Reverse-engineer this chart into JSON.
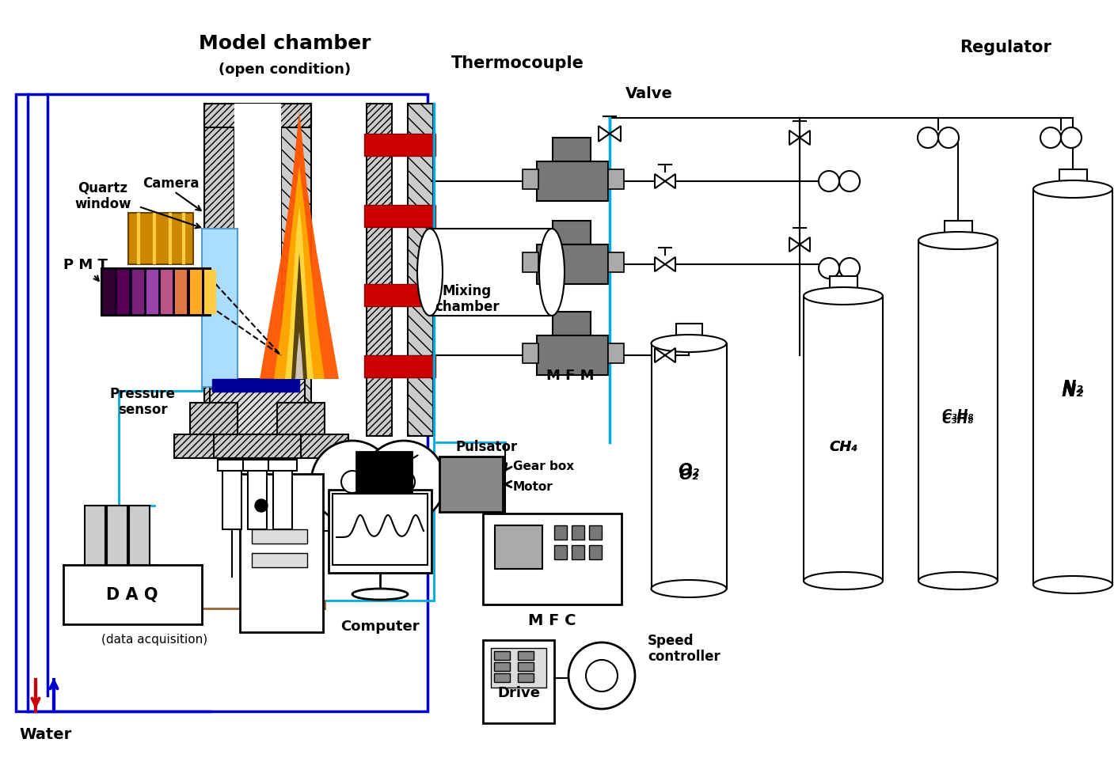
{
  "bg_color": "#ffffff",
  "blue_dark": "#0000CC",
  "cyan": "#00AADD",
  "brown": "#996633",
  "red_water": "#CC0000",
  "labels": {
    "model_chamber": "Model chamber",
    "open_condition": "(open condition)",
    "thermocouple": "Thermocouple",
    "regulator": "Regulator",
    "valve": "Valve",
    "quartz_window": "Quartz\nwindow",
    "camera": "Camera",
    "pmt": "P M T",
    "pressure_sensor": "Pressure\nsensor",
    "mixing_chamber": "Mixing\nchamber",
    "mfm": "M F M",
    "pulsator": "Pulsator",
    "gear_box": "Gear box",
    "motor": "Motor",
    "mfc": "M F C",
    "drive": "Drive",
    "speed_controller": "Speed\ncontroller",
    "daq": "D A Q",
    "data_acquisition": "(data acquisition)",
    "computer": "Computer",
    "water": "Water",
    "n2": "N₂",
    "c3h8": "C₃H₈",
    "ch4": "CH₄",
    "o2": "O₂"
  }
}
